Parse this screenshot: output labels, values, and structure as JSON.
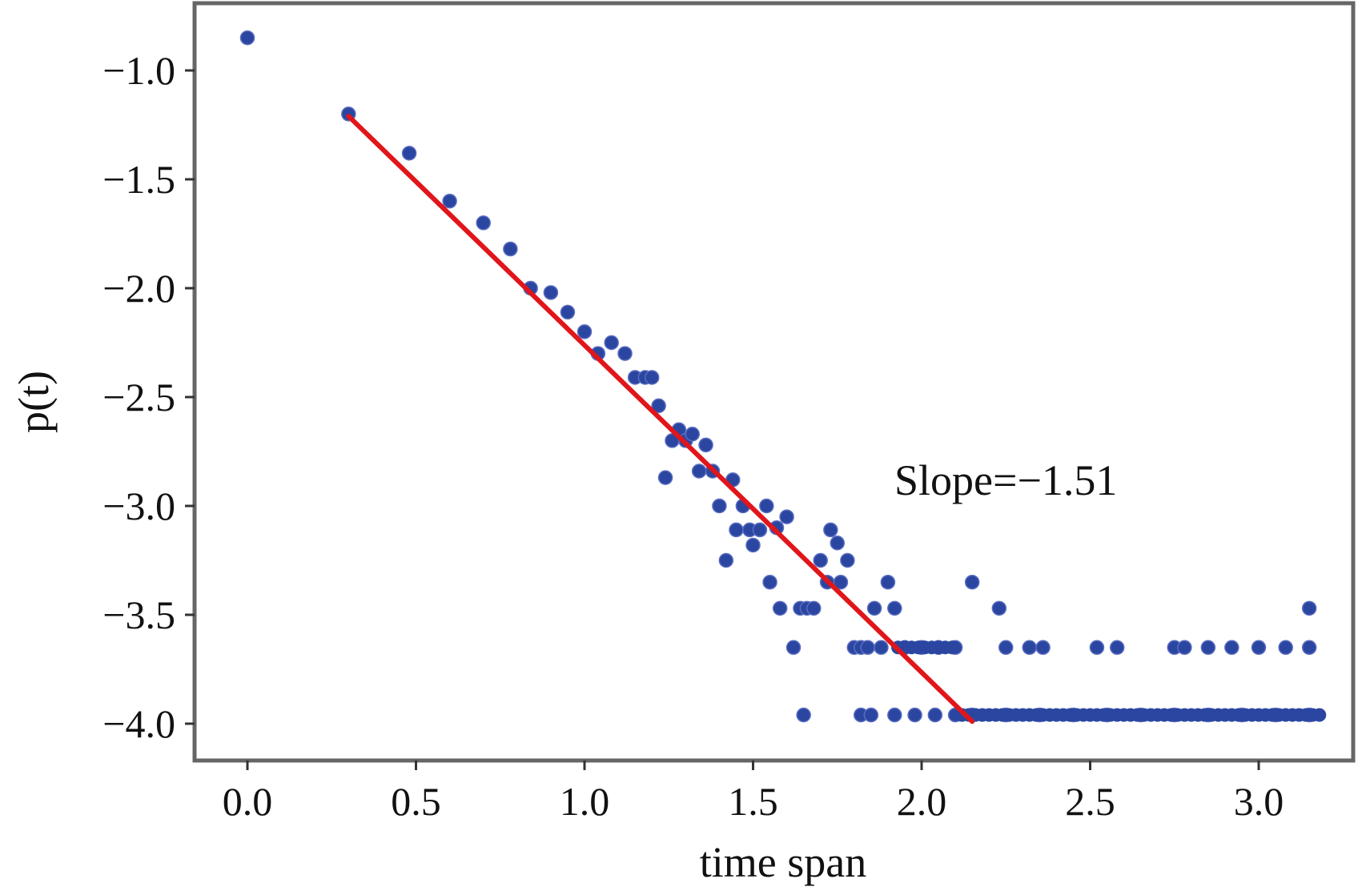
{
  "chart_data": {
    "type": "scatter",
    "title": "",
    "xlabel": "time span",
    "ylabel": "p(t)",
    "xlim": [
      -0.15,
      3.3
    ],
    "ylim": [
      -4.15,
      -0.7
    ],
    "x_ticks": [
      0.0,
      0.5,
      1.0,
      1.5,
      2.0,
      2.5,
      3.0
    ],
    "x_tick_labels": [
      "0.0",
      "0.5",
      "1.0",
      "1.5",
      "2.0",
      "2.5",
      "3.0"
    ],
    "y_ticks": [
      -1.0,
      -1.5,
      -2.0,
      -2.5,
      -3.0,
      -3.5,
      -4.0
    ],
    "y_tick_labels": [
      "−1.0",
      "−1.5",
      "−2.0",
      "−2.5",
      "−3.0",
      "−3.5",
      "−4.0"
    ],
    "grid": false,
    "annotation": "Slope=−1.51",
    "colors": {
      "points": "#2a46a0",
      "fit_line": "#e0161b",
      "frame": "#666666"
    },
    "fit_line": {
      "x": [
        0.3,
        2.15
      ],
      "y": [
        -1.21,
        -3.99
      ]
    },
    "points": [
      [
        0.0,
        -0.85
      ],
      [
        0.3,
        -1.2
      ],
      [
        0.48,
        -1.38
      ],
      [
        0.6,
        -1.6
      ],
      [
        0.7,
        -1.7
      ],
      [
        0.78,
        -1.82
      ],
      [
        0.84,
        -2.0
      ],
      [
        0.9,
        -2.02
      ],
      [
        0.95,
        -2.11
      ],
      [
        1.0,
        -2.2
      ],
      [
        1.04,
        -2.3
      ],
      [
        1.08,
        -2.25
      ],
      [
        1.12,
        -2.3
      ],
      [
        1.15,
        -2.41
      ],
      [
        1.18,
        -2.41
      ],
      [
        1.2,
        -2.41
      ],
      [
        1.22,
        -2.54
      ],
      [
        1.24,
        -2.87
      ],
      [
        1.26,
        -2.7
      ],
      [
        1.28,
        -2.65
      ],
      [
        1.3,
        -2.7
      ],
      [
        1.32,
        -2.67
      ],
      [
        1.34,
        -2.84
      ],
      [
        1.36,
        -2.72
      ],
      [
        1.38,
        -2.84
      ],
      [
        1.4,
        -3.0
      ],
      [
        1.42,
        -3.25
      ],
      [
        1.44,
        -2.88
      ],
      [
        1.45,
        -3.11
      ],
      [
        1.47,
        -3.0
      ],
      [
        1.49,
        -3.11
      ],
      [
        1.5,
        -3.18
      ],
      [
        1.52,
        -3.11
      ],
      [
        1.54,
        -3.0
      ],
      [
        1.55,
        -3.35
      ],
      [
        1.57,
        -3.1
      ],
      [
        1.58,
        -3.47
      ],
      [
        1.6,
        -3.05
      ],
      [
        1.62,
        -3.65
      ],
      [
        1.64,
        -3.47
      ],
      [
        1.66,
        -3.47
      ],
      [
        1.68,
        -3.47
      ],
      [
        1.7,
        -3.25
      ],
      [
        1.72,
        -3.35
      ],
      [
        1.73,
        -3.11
      ],
      [
        1.75,
        -3.17
      ],
      [
        1.76,
        -3.35
      ],
      [
        1.78,
        -3.25
      ],
      [
        1.8,
        -3.65
      ],
      [
        1.82,
        -3.65
      ],
      [
        1.84,
        -3.65
      ],
      [
        1.86,
        -3.47
      ],
      [
        1.88,
        -3.65
      ],
      [
        1.9,
        -3.35
      ],
      [
        1.92,
        -3.47
      ],
      [
        1.95,
        -3.65
      ],
      [
        2.0,
        -3.65
      ],
      [
        2.05,
        -3.65
      ],
      [
        2.1,
        -3.65
      ],
      [
        2.15,
        -3.35
      ],
      [
        2.23,
        -3.47
      ],
      [
        2.25,
        -3.65
      ],
      [
        2.32,
        -3.65
      ],
      [
        2.36,
        -3.65
      ],
      [
        2.52,
        -3.65
      ],
      [
        2.58,
        -3.65
      ],
      [
        2.75,
        -3.65
      ],
      [
        2.78,
        -3.65
      ],
      [
        2.85,
        -3.65
      ],
      [
        2.92,
        -3.65
      ],
      [
        3.0,
        -3.65
      ],
      [
        3.08,
        -3.65
      ],
      [
        3.15,
        -3.65
      ],
      [
        3.15,
        -3.47
      ],
      [
        1.65,
        -3.96
      ],
      [
        1.82,
        -3.96
      ],
      [
        1.85,
        -3.96
      ],
      [
        1.92,
        -3.96
      ],
      [
        1.98,
        -3.96
      ],
      [
        2.04,
        -3.96
      ],
      [
        2.1,
        -3.96
      ],
      [
        2.15,
        -3.96
      ],
      [
        2.25,
        -3.96
      ],
      [
        2.35,
        -3.96
      ],
      [
        2.45,
        -3.96
      ],
      [
        2.55,
        -3.96
      ],
      [
        2.65,
        -3.96
      ],
      [
        2.75,
        -3.96
      ],
      [
        2.85,
        -3.96
      ],
      [
        2.95,
        -3.96
      ],
      [
        3.05,
        -3.96
      ],
      [
        3.15,
        -3.96
      ]
    ]
  }
}
